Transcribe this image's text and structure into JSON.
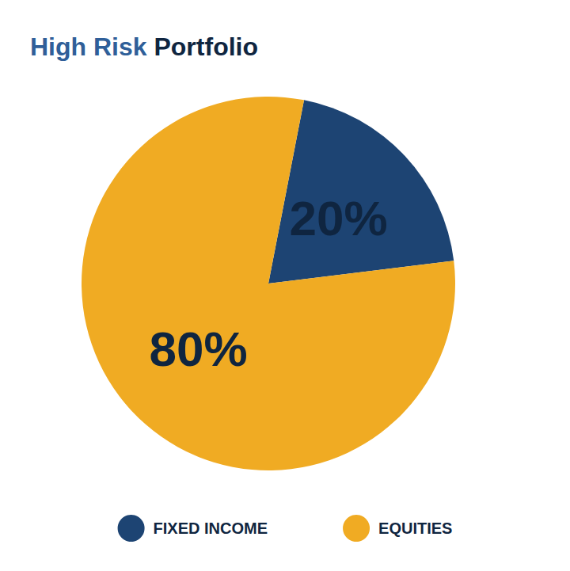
{
  "chart_data": {
    "type": "pie",
    "title": "High Risk Portfolio",
    "categories": [
      "FIXED INCOME",
      "EQUITIES"
    ],
    "values": [
      20,
      80
    ],
    "value_labels": [
      "20%",
      "80%"
    ],
    "colors": [
      "#1d4473",
      "#f0ab23"
    ],
    "data_labels": true,
    "legend": "bottom"
  }
}
